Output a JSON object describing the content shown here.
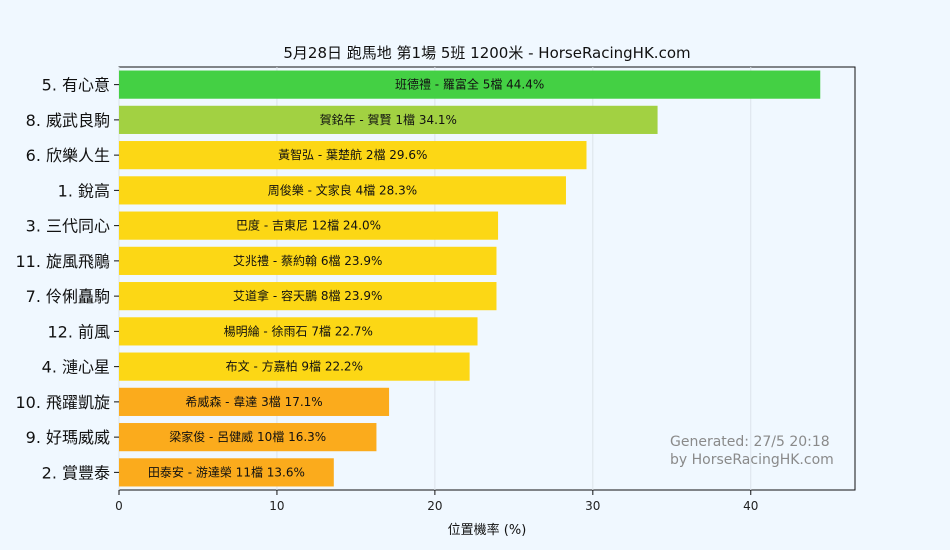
{
  "chart_data": {
    "type": "bar",
    "orientation": "horizontal",
    "title": "5月28日  跑馬地  第1場  5班  1200米 - HorseRacingHK.com",
    "xlabel": "位置機率 (%)",
    "ylabel": "",
    "xlim": [
      0,
      46.6
    ],
    "xticks": [
      "0",
      "10",
      "20",
      "30",
      "40"
    ],
    "grid": true,
    "categories": [
      "5. 有心意",
      "8. 威武良駒",
      "6. 欣樂人生",
      "1. 銳高",
      "3. 三代同心",
      "11. 旋風飛鵰",
      "7. 伶俐矗駒",
      "12. 前風",
      "4. 漣心星",
      "10. 飛躍凱旋",
      "9. 好瑪威威",
      "2. 賞豐泰"
    ],
    "values": [
      44.4,
      34.1,
      29.6,
      28.3,
      24.0,
      23.9,
      23.9,
      22.7,
      22.2,
      17.1,
      16.3,
      13.6
    ],
    "bar_labels": [
      "班德禮 - 羅富全 5檔  44.4%",
      "賀銘年 - 賀賢 1檔  34.1%",
      "黃智弘 - 葉楚航 2檔  29.6%",
      "周俊樂 - 文家良 4檔  28.3%",
      "巴度 - 吉東尼 12檔  24.0%",
      "艾兆禮 - 蔡約翰 6檔  23.9%",
      "艾道拿 - 容天鵬 8檔  23.9%",
      "楊明綸 - 徐雨石 7檔  22.7%",
      "布文 - 方嘉柏 9檔  22.2%",
      "希威森 - 韋達 3檔  17.1%",
      "梁家俊 - 呂健威 10檔  16.3%",
      "田泰安 - 游達榮 11檔  13.6%"
    ],
    "bar_colors": [
      "#44d044",
      "#a2d142",
      "#fcd715",
      "#fcd715",
      "#fcd715",
      "#fcd715",
      "#fcd715",
      "#fcd715",
      "#fcd715",
      "#fbab1c",
      "#fbab1c",
      "#fbab1c"
    ],
    "watermark": [
      "Generated: 27/5 20:18",
      "by HorseRacingHK.com"
    ]
  }
}
